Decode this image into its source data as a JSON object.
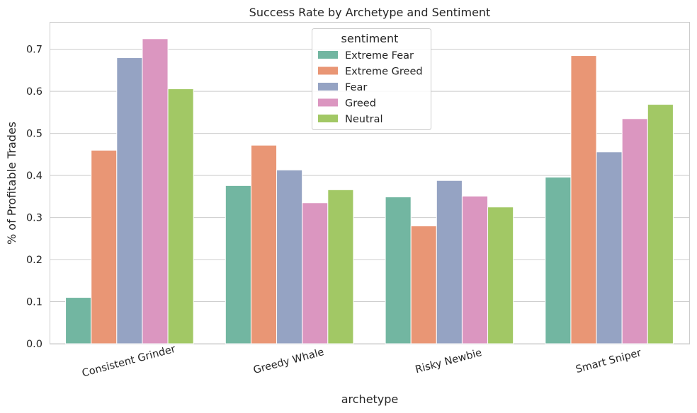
{
  "chart_data": {
    "type": "bar",
    "title": "Success Rate by Archetype and Sentiment",
    "xlabel": "archetype",
    "ylabel": "% of Profitable Trades",
    "categories": [
      "Consistent Grinder",
      "Greedy Whale",
      "Risky Newbie",
      "Smart Sniper"
    ],
    "ylim": [
      0,
      0.765
    ],
    "yticks": [
      "0.0",
      "0.1",
      "0.2",
      "0.3",
      "0.4",
      "0.5",
      "0.6",
      "0.7"
    ],
    "grid": "horizontal",
    "legend": {
      "title": "sentiment",
      "placement": "top-center"
    },
    "series": [
      {
        "name": "Extreme Fear",
        "color": "#72b6a1",
        "values": [
          0.11,
          0.376,
          0.349,
          0.396
        ]
      },
      {
        "name": "Extreme Greed",
        "color": "#e99675",
        "values": [
          0.46,
          0.472,
          0.28,
          0.685
        ]
      },
      {
        "name": "Fear",
        "color": "#95a3c3",
        "values": [
          0.68,
          0.413,
          0.388,
          0.456
        ]
      },
      {
        "name": "Greed",
        "color": "#db96c0",
        "values": [
          0.725,
          0.335,
          0.351,
          0.535
        ]
      },
      {
        "name": "Neutral",
        "color": "#a2c865",
        "values": [
          0.606,
          0.366,
          0.325,
          0.569
        ]
      }
    ]
  }
}
